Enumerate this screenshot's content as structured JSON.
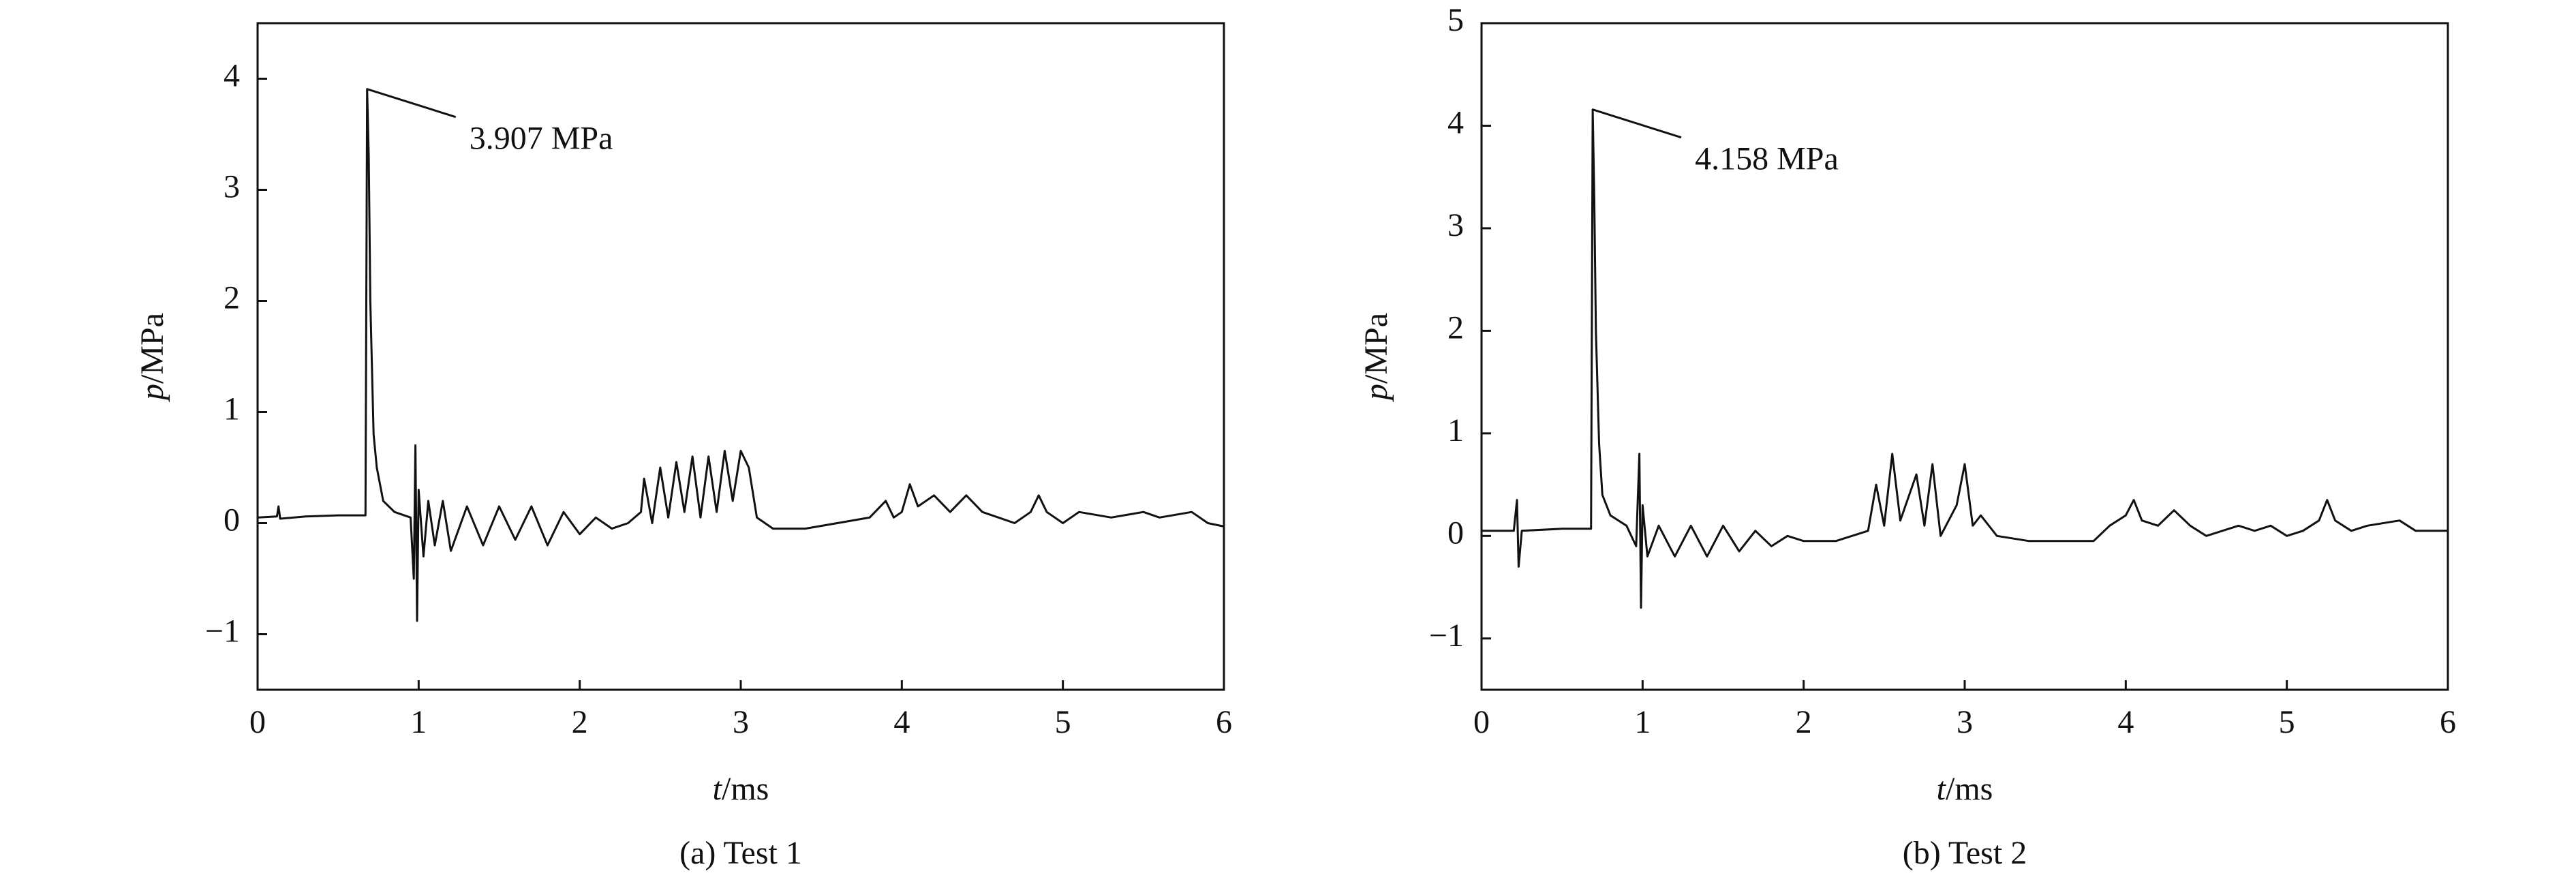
{
  "chart_data": [
    {
      "type": "line",
      "caption": "(a) Test 1",
      "x_label_var": "t",
      "x_label_unit": "/ms",
      "y_label_var": "p",
      "y_label_unit": "/MPa",
      "annotation": "3.907 MPa",
      "xlim": [
        0,
        6
      ],
      "xticks": [
        0,
        1,
        2,
        3,
        4,
        5,
        6
      ],
      "ylim": [
        -1.5,
        4.5
      ],
      "yticks": [
        {
          "value": -1,
          "label": "−1"
        },
        0,
        1,
        2,
        3,
        4
      ],
      "series": [
        {
          "color": "#111111",
          "x": [
            0,
            0.12,
            0.13,
            0.14,
            0.3,
            0.5,
            0.67,
            0.68,
            0.69,
            0.7,
            0.72,
            0.74,
            0.78,
            0.85,
            0.95,
            0.97,
            0.98,
            0.99,
            1.0,
            1.03,
            1.06,
            1.1,
            1.15,
            1.2,
            1.3,
            1.4,
            1.5,
            1.6,
            1.7,
            1.8,
            1.9,
            2.0,
            2.1,
            2.2,
            2.3,
            2.38,
            2.4,
            2.45,
            2.5,
            2.55,
            2.6,
            2.65,
            2.7,
            2.75,
            2.8,
            2.85,
            2.9,
            2.95,
            3.0,
            3.05,
            3.1,
            3.2,
            3.4,
            3.6,
            3.8,
            3.9,
            3.95,
            4.0,
            4.05,
            4.1,
            4.2,
            4.3,
            4.4,
            4.5,
            4.6,
            4.7,
            4.8,
            4.85,
            4.9,
            5.0,
            5.1,
            5.3,
            5.5,
            5.6,
            5.8,
            5.9,
            6.0
          ],
          "values": [
            0.05,
            0.06,
            0.15,
            0.04,
            0.06,
            0.07,
            0.07,
            3.907,
            3.3,
            2.0,
            0.8,
            0.5,
            0.2,
            0.1,
            0.05,
            -0.5,
            0.7,
            -0.88,
            0.3,
            -0.3,
            0.2,
            -0.2,
            0.2,
            -0.25,
            0.15,
            -0.2,
            0.15,
            -0.15,
            0.15,
            -0.2,
            0.1,
            -0.1,
            0.05,
            -0.05,
            0.0,
            0.1,
            0.4,
            0.0,
            0.5,
            0.05,
            0.55,
            0.1,
            0.6,
            0.05,
            0.6,
            0.1,
            0.65,
            0.2,
            0.65,
            0.5,
            0.05,
            -0.05,
            -0.05,
            0.0,
            0.05,
            0.2,
            0.05,
            0.1,
            0.35,
            0.15,
            0.25,
            0.1,
            0.25,
            0.1,
            0.05,
            0.0,
            0.1,
            0.25,
            0.1,
            0.0,
            0.1,
            0.05,
            0.1,
            0.05,
            0.1,
            0.0,
            -0.03
          ]
        }
      ]
    },
    {
      "type": "line",
      "caption": "(b) Test 2",
      "x_label_var": "t",
      "x_label_unit": "/ms",
      "y_label_var": "p",
      "y_label_unit": "/MPa",
      "annotation": "4.158 MPa",
      "xlim": [
        0,
        6
      ],
      "xticks": [
        0,
        1,
        2,
        3,
        4,
        5,
        6
      ],
      "ylim": [
        -1.5,
        5
      ],
      "yticks": [
        {
          "value": -1,
          "label": "−1"
        },
        0,
        1,
        2,
        3,
        4,
        5
      ],
      "series": [
        {
          "color": "#111111",
          "x": [
            0,
            0.2,
            0.22,
            0.23,
            0.25,
            0.5,
            0.68,
            0.69,
            0.7,
            0.71,
            0.73,
            0.75,
            0.8,
            0.9,
            0.96,
            0.98,
            0.99,
            1.0,
            1.03,
            1.1,
            1.2,
            1.3,
            1.4,
            1.5,
            1.6,
            1.7,
            1.8,
            1.9,
            2.0,
            2.2,
            2.4,
            2.45,
            2.5,
            2.55,
            2.6,
            2.7,
            2.75,
            2.8,
            2.85,
            2.95,
            3.0,
            3.05,
            3.1,
            3.2,
            3.4,
            3.6,
            3.8,
            3.9,
            4.0,
            4.05,
            4.1,
            4.2,
            4.3,
            4.4,
            4.5,
            4.7,
            4.8,
            4.9,
            5.0,
            5.1,
            5.2,
            5.25,
            5.3,
            5.4,
            5.5,
            5.7,
            5.8,
            6.0
          ],
          "values": [
            0.05,
            0.05,
            0.35,
            -0.3,
            0.05,
            0.07,
            0.07,
            4.158,
            3.3,
            2.0,
            0.9,
            0.4,
            0.2,
            0.1,
            -0.1,
            0.8,
            -0.7,
            0.3,
            -0.2,
            0.1,
            -0.2,
            0.1,
            -0.2,
            0.1,
            -0.15,
            0.05,
            -0.1,
            0.0,
            -0.05,
            -0.05,
            0.05,
            0.5,
            0.1,
            0.8,
            0.15,
            0.6,
            0.1,
            0.7,
            0.0,
            0.3,
            0.7,
            0.1,
            0.2,
            0.0,
            -0.05,
            -0.05,
            -0.05,
            0.1,
            0.2,
            0.35,
            0.15,
            0.1,
            0.25,
            0.1,
            0.0,
            0.1,
            0.05,
            0.1,
            0.0,
            0.05,
            0.15,
            0.35,
            0.15,
            0.05,
            0.1,
            0.15,
            0.05,
            0.05
          ]
        }
      ]
    }
  ]
}
